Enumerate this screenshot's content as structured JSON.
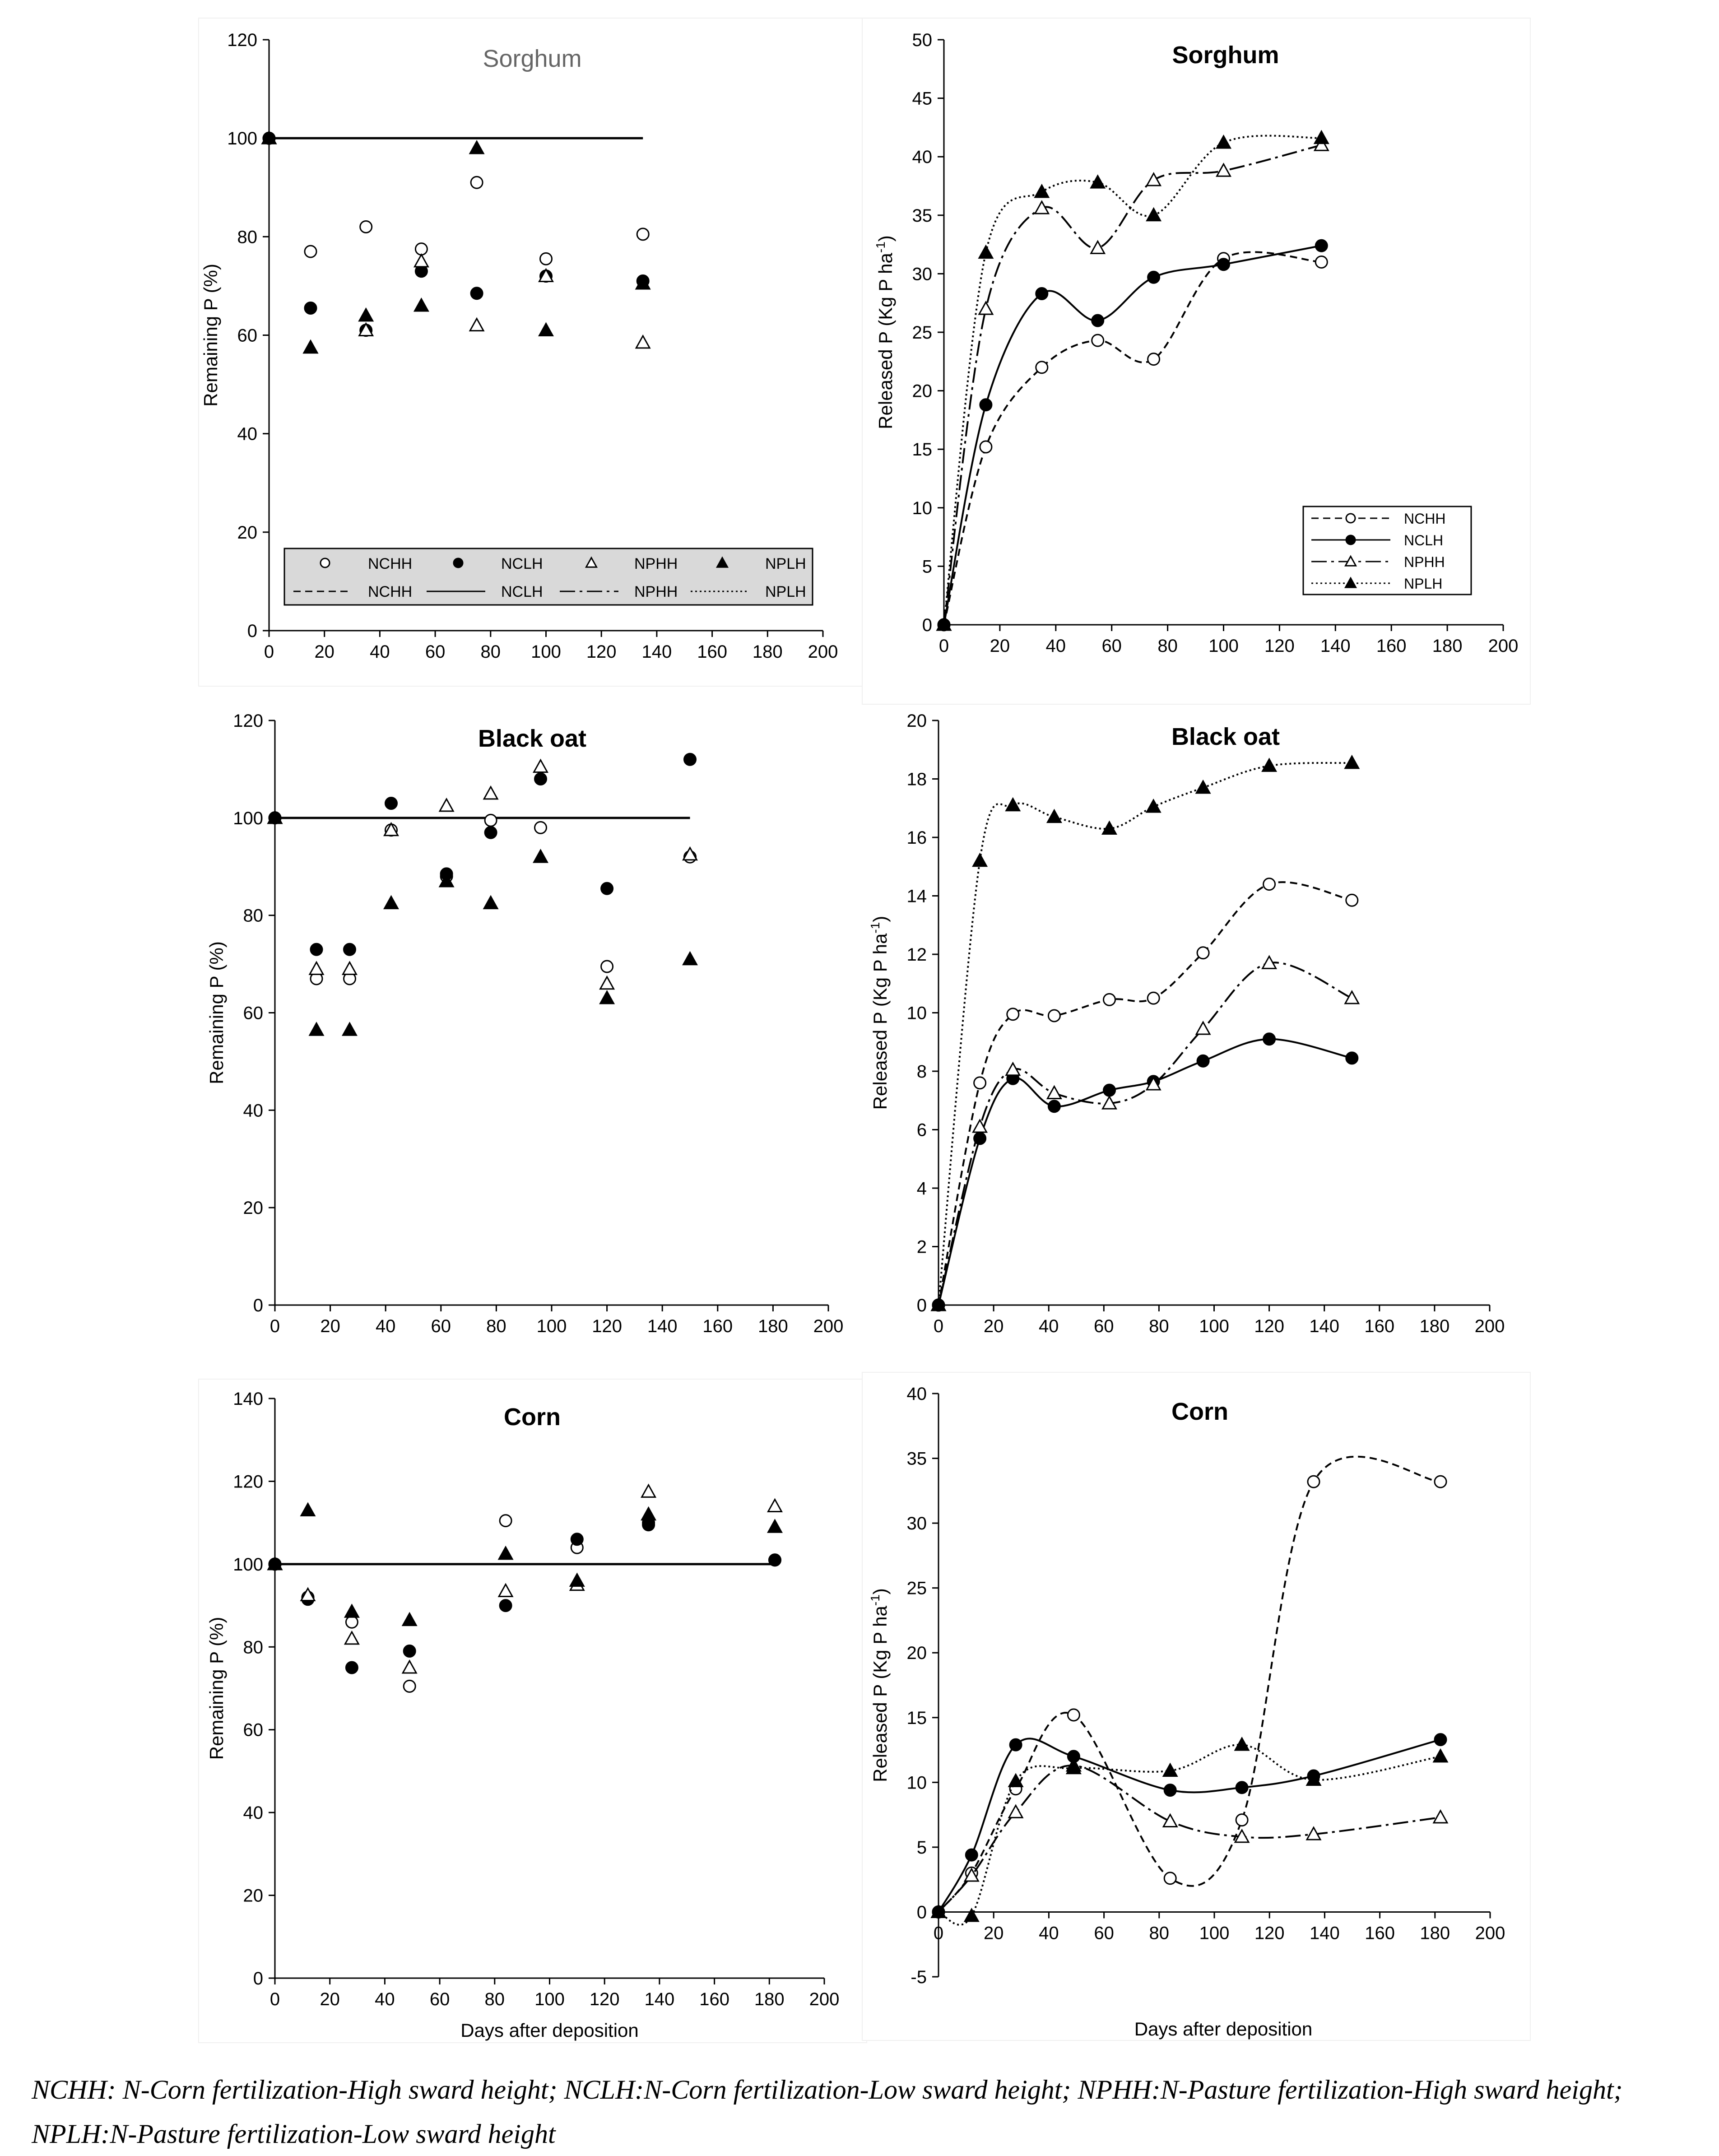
{
  "figure": {
    "caption": "NCHH: N-Corn fertilization-High sward height; NCLH:N-Corn fertilization-Low sward height; NPHH:N-Pasture fertilization-High sward height; NPLH:N-Pasture fertilization-Low sward height"
  },
  "chart_data": [
    {
      "id": "remaining-sorghum",
      "type": "scatter",
      "title": "Sorghum",
      "xlabel": "",
      "ylabel": "Remaining P (%)",
      "xlim": [
        0,
        200
      ],
      "xticks": [
        0,
        20,
        40,
        60,
        80,
        100,
        120,
        140,
        160,
        180,
        200
      ],
      "ylim": [
        0,
        120
      ],
      "yticks": [
        0,
        20,
        40,
        60,
        80,
        100,
        120
      ],
      "reference_line": {
        "y": 100,
        "x": [
          0,
          135
        ]
      },
      "legend": {
        "position": "bottom",
        "entries": [
          "NCHH",
          "NCLH",
          "NPHH",
          "NPLH",
          "NCHH",
          "NCLH",
          "NPHH",
          "NPLH"
        ]
      },
      "series": [
        {
          "name": "NCHH",
          "x": [
            0,
            15,
            35,
            55,
            75,
            100,
            135
          ],
          "y": [
            100,
            77,
            82,
            77.5,
            91,
            75.5,
            80.5
          ]
        },
        {
          "name": "NCLH",
          "x": [
            0,
            15,
            35,
            55,
            75,
            100,
            135
          ],
          "y": [
            100,
            65.5,
            61,
            73,
            68.5,
            72,
            71
          ]
        },
        {
          "name": "NPHH",
          "x": [
            0,
            15,
            35,
            55,
            75,
            100,
            135
          ],
          "y": [
            100,
            57.5,
            61,
            75,
            62,
            72,
            58.5
          ]
        },
        {
          "name": "NPLH",
          "x": [
            0,
            15,
            35,
            55,
            75,
            100,
            135
          ],
          "y": [
            100,
            57.5,
            64,
            66,
            98,
            61,
            70.5
          ]
        }
      ]
    },
    {
      "id": "released-sorghum",
      "type": "line",
      "title": "Sorghum",
      "xlabel": "",
      "ylabel": "Released  P  (Kg P ha-1)",
      "xlim": [
        0,
        200
      ],
      "xticks": [
        0,
        20,
        40,
        60,
        80,
        100,
        120,
        140,
        160,
        180,
        200
      ],
      "ylim": [
        0,
        50
      ],
      "yticks": [
        0,
        5,
        10,
        15,
        20,
        25,
        30,
        35,
        40,
        45,
        50
      ],
      "legend": {
        "position": "bottom-right",
        "entries": [
          "NCHH",
          "NCLH",
          "NPHH",
          "NPLH"
        ]
      },
      "series": [
        {
          "name": "NCHH",
          "x": [
            0,
            15,
            35,
            55,
            75,
            100,
            135
          ],
          "y": [
            0,
            15.2,
            22,
            24.3,
            22.7,
            31.3,
            31
          ]
        },
        {
          "name": "NCLH",
          "x": [
            0,
            15,
            35,
            55,
            75,
            100,
            135
          ],
          "y": [
            0,
            18.8,
            28.3,
            26,
            29.7,
            30.8,
            32.4
          ]
        },
        {
          "name": "NPHH",
          "x": [
            0,
            15,
            35,
            55,
            75,
            100,
            135
          ],
          "y": [
            0,
            27,
            35.6,
            32.2,
            38,
            38.8,
            41
          ]
        },
        {
          "name": "NPLH",
          "x": [
            0,
            15,
            35,
            55,
            75,
            100,
            135
          ],
          "y": [
            0,
            31.8,
            37,
            37.8,
            35,
            41.2,
            41.6
          ]
        }
      ]
    },
    {
      "id": "remaining-blackoat",
      "type": "scatter",
      "title": "Black oat",
      "xlabel": "",
      "ylabel": "Remaining P (%)",
      "xlim": [
        0,
        200
      ],
      "xticks": [
        0,
        20,
        40,
        60,
        80,
        100,
        120,
        140,
        160,
        180,
        200
      ],
      "ylim": [
        0,
        120
      ],
      "yticks": [
        0,
        20,
        40,
        60,
        80,
        100,
        120
      ],
      "reference_line": {
        "y": 100,
        "x": [
          0,
          150
        ]
      },
      "series": [
        {
          "name": "NCHH",
          "x": [
            0,
            15,
            27,
            42,
            62,
            78,
            96,
            120,
            150
          ],
          "y": [
            100,
            67,
            67,
            97.5,
            88,
            99.5,
            98,
            69.5,
            92
          ]
        },
        {
          "name": "NCLH",
          "x": [
            0,
            15,
            27,
            42,
            62,
            78,
            96,
            120,
            150
          ],
          "y": [
            100,
            73,
            73,
            103,
            88.5,
            97,
            108,
            85.5,
            112
          ]
        },
        {
          "name": "NPHH",
          "x": [
            0,
            15,
            27,
            42,
            62,
            78,
            96,
            120,
            150
          ],
          "y": [
            100,
            69,
            69,
            97.5,
            102.5,
            105,
            110.5,
            66,
            92.5
          ]
        },
        {
          "name": "NPLH",
          "x": [
            0,
            15,
            27,
            42,
            62,
            78,
            96,
            120,
            150
          ],
          "y": [
            100,
            56.5,
            56.5,
            82.5,
            87,
            82.5,
            92,
            63,
            71
          ]
        }
      ]
    },
    {
      "id": "released-blackoat",
      "type": "line",
      "title": "Black oat",
      "xlabel": "",
      "ylabel": "Released  P  (Kg P ha-1)",
      "xlim": [
        0,
        200
      ],
      "xticks": [
        0,
        20,
        40,
        60,
        80,
        100,
        120,
        140,
        160,
        180,
        200
      ],
      "ylim": [
        0,
        20
      ],
      "yticks": [
        0,
        2,
        4,
        6,
        8,
        10,
        12,
        14,
        16,
        18,
        20
      ],
      "series": [
        {
          "name": "NCHH",
          "x": [
            0,
            15,
            27,
            42,
            62,
            78,
            96,
            120,
            150
          ],
          "y": [
            0,
            7.6,
            9.95,
            9.9,
            10.45,
            10.5,
            12.05,
            14.4,
            13.85
          ]
        },
        {
          "name": "NCLH",
          "x": [
            0,
            15,
            27,
            42,
            62,
            78,
            96,
            120,
            150
          ],
          "y": [
            0,
            5.7,
            7.75,
            6.8,
            7.35,
            7.65,
            8.35,
            9.1,
            8.45
          ]
        },
        {
          "name": "NPHH",
          "x": [
            0,
            15,
            27,
            42,
            62,
            78,
            96,
            120,
            150
          ],
          "y": [
            0,
            6.1,
            8.05,
            7.25,
            6.9,
            7.55,
            9.45,
            11.7,
            10.5
          ]
        },
        {
          "name": "NPLH",
          "x": [
            0,
            15,
            27,
            42,
            62,
            78,
            96,
            120,
            150
          ],
          "y": [
            0,
            15.2,
            17.1,
            16.7,
            16.3,
            17.05,
            17.7,
            18.45,
            18.55
          ]
        }
      ]
    },
    {
      "id": "remaining-corn",
      "type": "scatter",
      "title": "Corn",
      "xlabel": "Days after deposition",
      "ylabel": "Remaining P (%)",
      "xlim": [
        0,
        200
      ],
      "xticks": [
        0,
        20,
        40,
        60,
        80,
        100,
        120,
        140,
        160,
        180,
        200
      ],
      "ylim": [
        0,
        140
      ],
      "yticks": [
        0,
        20,
        40,
        60,
        80,
        100,
        120,
        140
      ],
      "reference_line": {
        "y": 100,
        "x": [
          0,
          182
        ]
      },
      "series": [
        {
          "name": "NCHH",
          "x": [
            0,
            12,
            28,
            49,
            84,
            110,
            136,
            182
          ],
          "y": [
            100,
            92,
            86,
            70.5,
            110.5,
            104,
            110,
            101
          ]
        },
        {
          "name": "NCLH",
          "x": [
            0,
            12,
            28,
            49,
            84,
            110,
            136,
            182
          ],
          "y": [
            100,
            91.5,
            75,
            79,
            90,
            106,
            109.5,
            101
          ]
        },
        {
          "name": "NPHH",
          "x": [
            0,
            12,
            28,
            49,
            84,
            110,
            136,
            182
          ],
          "y": [
            100,
            92.5,
            82,
            75,
            93.5,
            95,
            117.5,
            114
          ]
        },
        {
          "name": "NPLH",
          "x": [
            0,
            12,
            28,
            49,
            84,
            110,
            136,
            182
          ],
          "y": [
            100,
            113,
            88.5,
            86.5,
            102.5,
            96,
            112,
            109
          ]
        }
      ]
    },
    {
      "id": "released-corn",
      "type": "line",
      "title": "Corn",
      "xlabel": "Days after deposition",
      "ylabel": "Released  P  (Kg P ha-1)",
      "xlim": [
        0,
        200
      ],
      "xticks": [
        0,
        20,
        40,
        60,
        80,
        100,
        120,
        140,
        160,
        180,
        200
      ],
      "ylim": [
        -5,
        40
      ],
      "yticks": [
        -5,
        0,
        5,
        10,
        15,
        20,
        25,
        30,
        35,
        40
      ],
      "series": [
        {
          "name": "NCHH",
          "x": [
            0,
            12,
            28,
            49,
            84,
            110,
            136,
            182
          ],
          "y": [
            0,
            3,
            9.5,
            15.2,
            2.6,
            7.1,
            33.2,
            33.2
          ]
        },
        {
          "name": "NCLH",
          "x": [
            0,
            12,
            28,
            49,
            84,
            110,
            136,
            182
          ],
          "y": [
            0,
            4.4,
            12.9,
            12,
            9.4,
            9.6,
            10.5,
            13.3
          ]
        },
        {
          "name": "NPHH",
          "x": [
            0,
            12,
            28,
            49,
            84,
            110,
            136,
            182
          ],
          "y": [
            0,
            2.8,
            7.7,
            11.3,
            7,
            5.8,
            6,
            7.3
          ]
        },
        {
          "name": "NPLH",
          "x": [
            0,
            12,
            28,
            49,
            84,
            110,
            136,
            182
          ],
          "y": [
            0,
            -0.3,
            10.1,
            11.1,
            10.9,
            12.9,
            10.2,
            12
          ]
        }
      ]
    }
  ]
}
